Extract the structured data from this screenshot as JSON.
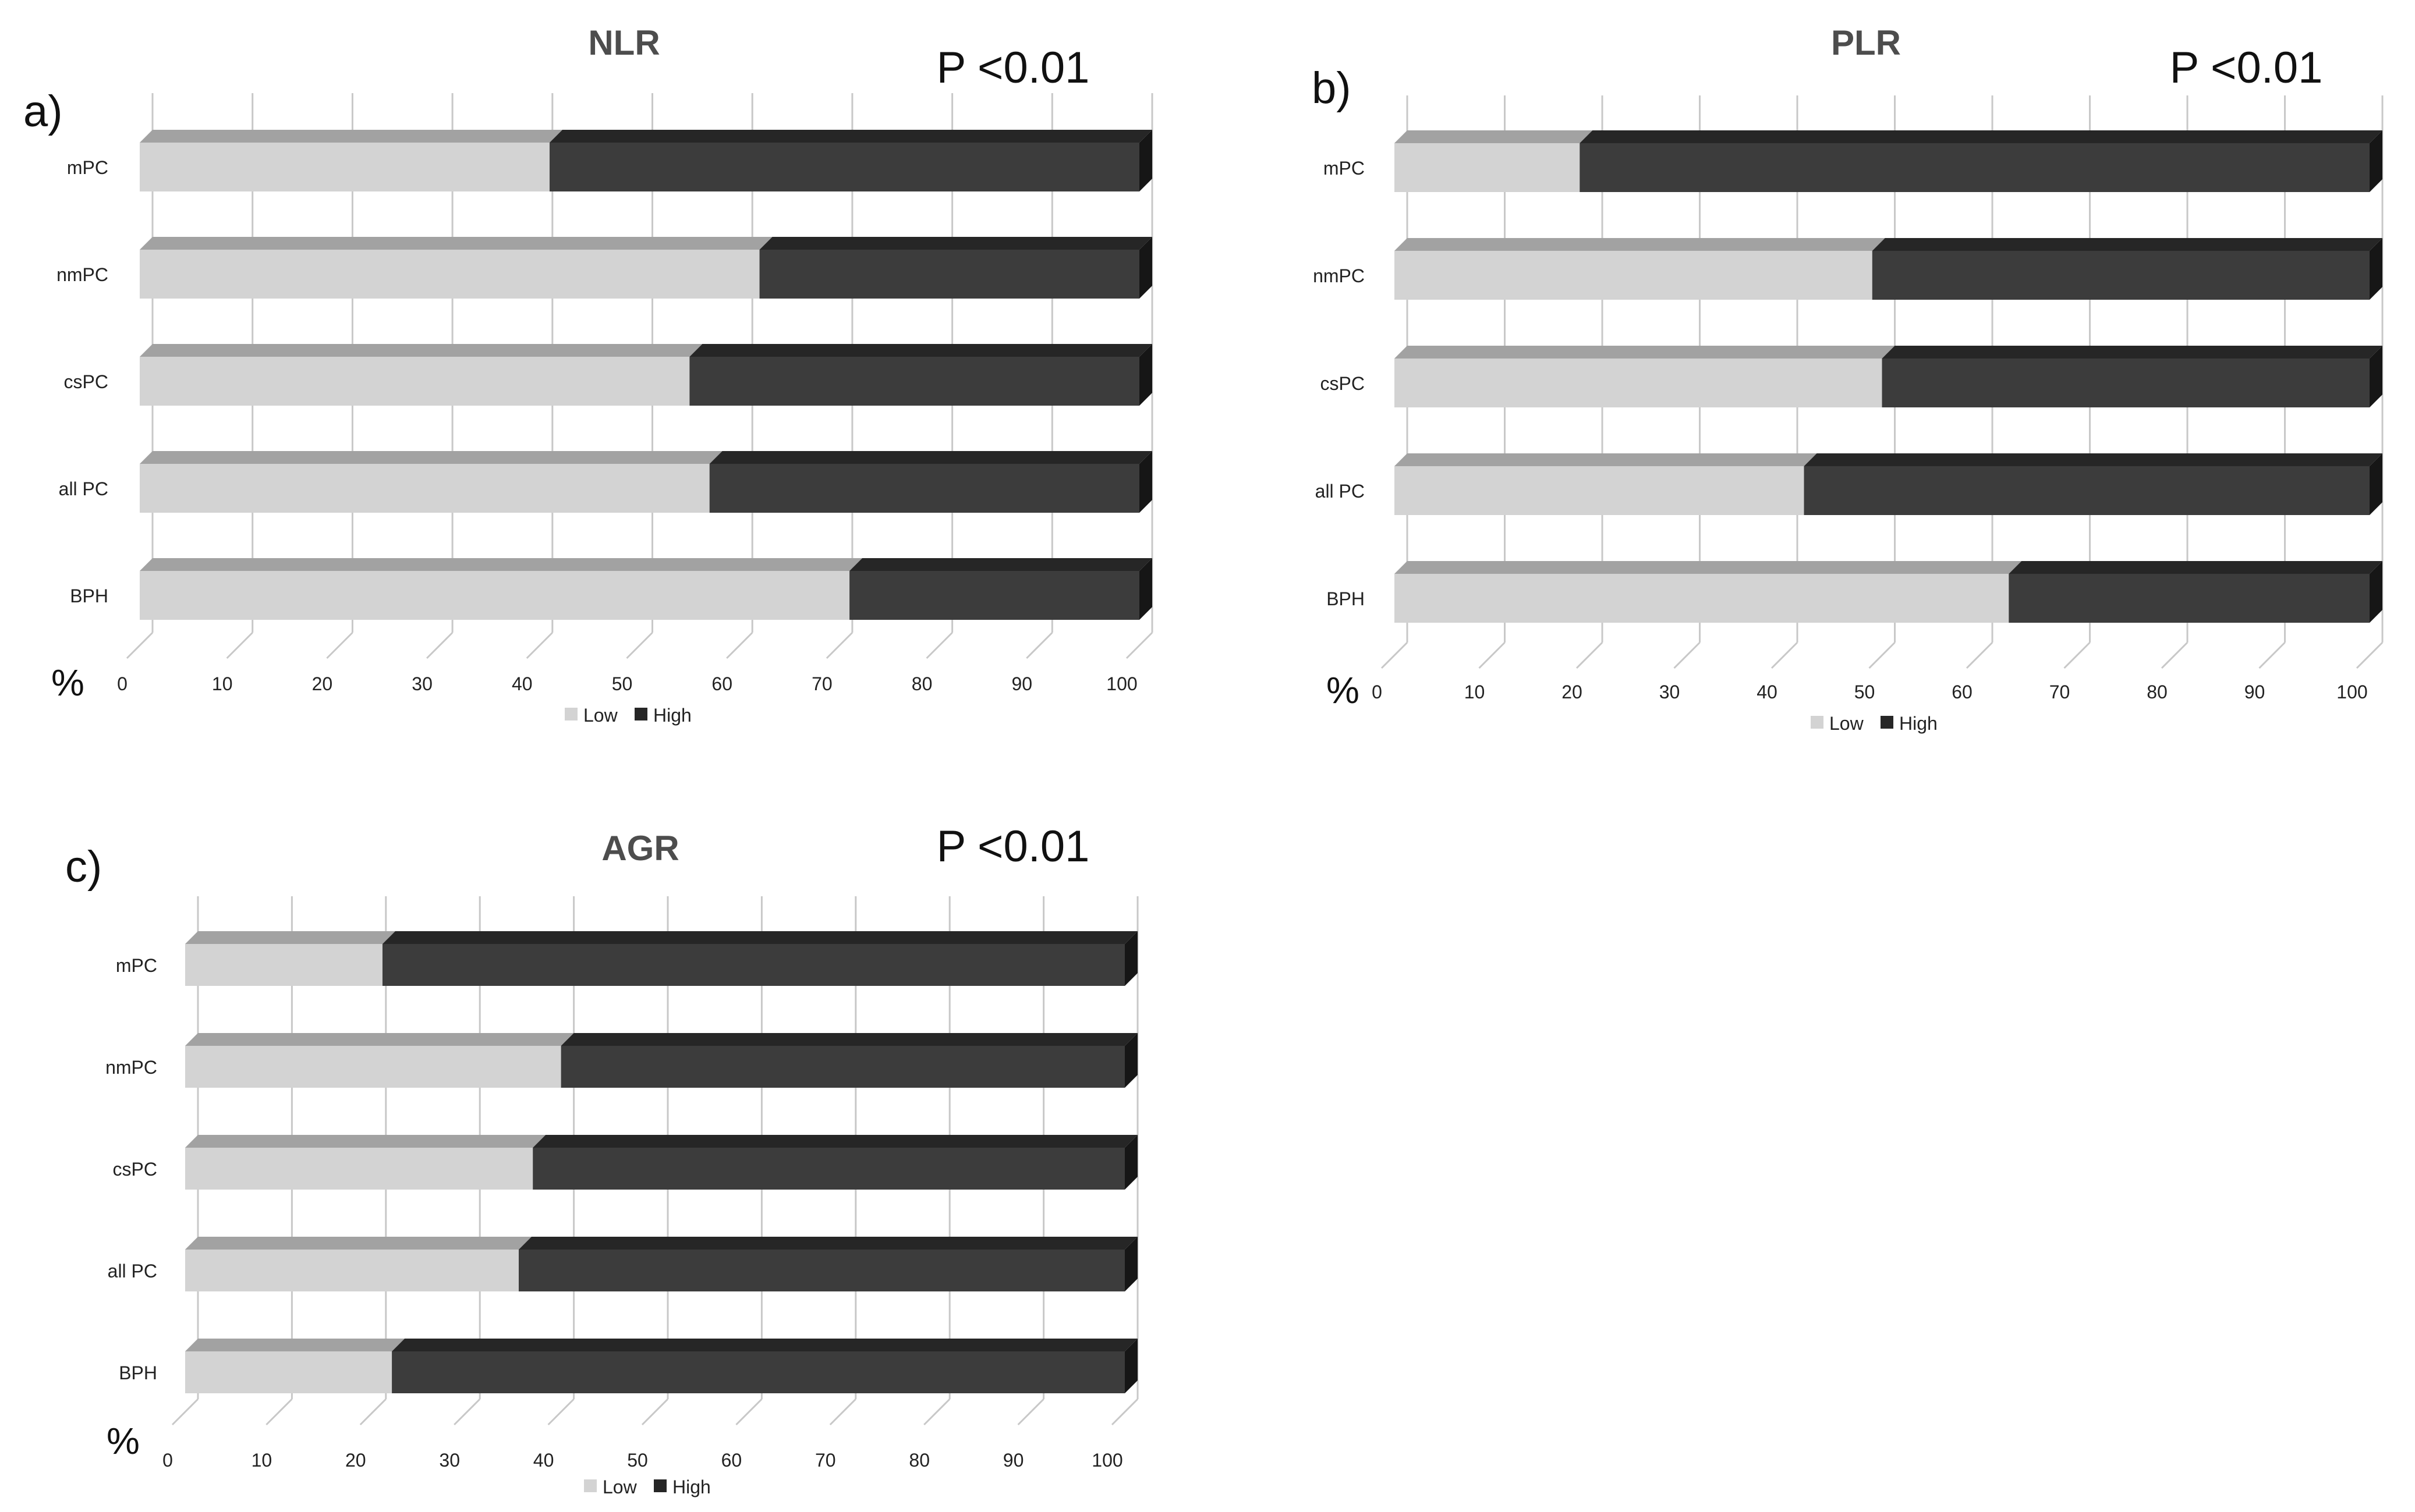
{
  "figure": {
    "legend": {
      "low_label": "Low",
      "high_label": "High"
    },
    "colors": {
      "low": "#d3d3d3",
      "low_top": "#a2a2a2",
      "high": "#3c3c3c",
      "high_top": "#262626",
      "grid": "#c8c8c8",
      "title": "#4d4d4d",
      "text": "#222222"
    }
  },
  "chart_data": [
    {
      "panel_label": "a)",
      "title": "NLR",
      "annotation": "P <0.01",
      "type": "bar",
      "orientation": "horizontal",
      "stacked": true,
      "three_d": true,
      "xlabel": "%",
      "xlim": [
        0,
        100
      ],
      "xticks": [
        "0",
        "10",
        "20",
        "30",
        "40",
        "50",
        "60",
        "70",
        "80",
        "90",
        "100"
      ],
      "categories": [
        "mPC",
        "nmPC",
        "csPC",
        "all PC",
        "BPH"
      ],
      "series": [
        {
          "name": "Low",
          "values": [
            41,
            62,
            55,
            57,
            71
          ]
        },
        {
          "name": "High",
          "values": [
            59,
            38,
            45,
            43,
            29
          ]
        }
      ],
      "legend": "bottom"
    },
    {
      "panel_label": "b)",
      "title": "PLR",
      "annotation": "P <0.01",
      "type": "bar",
      "orientation": "horizontal",
      "stacked": true,
      "three_d": true,
      "xlabel": "%",
      "xlim": [
        0,
        100
      ],
      "xticks": [
        "0",
        "10",
        "20",
        "30",
        "40",
        "50",
        "60",
        "70",
        "80",
        "90",
        "100"
      ],
      "categories": [
        "mPC",
        "nmPC",
        "csPC",
        "all PC",
        "BPH"
      ],
      "series": [
        {
          "name": "Low",
          "values": [
            19,
            49,
            50,
            42,
            63
          ]
        },
        {
          "name": "High",
          "values": [
            81,
            51,
            50,
            58,
            37
          ]
        }
      ],
      "legend": "bottom"
    },
    {
      "panel_label": "c)",
      "title": "AGR",
      "annotation": "P <0.01",
      "type": "bar",
      "orientation": "horizontal",
      "stacked": true,
      "three_d": true,
      "xlabel": "%",
      "xlim": [
        0,
        100
      ],
      "xticks": [
        "0",
        "10",
        "20",
        "30",
        "40",
        "50",
        "60",
        "70",
        "80",
        "90",
        "100"
      ],
      "categories": [
        "mPC",
        "nmPC",
        "csPC",
        "all PC",
        "BPH"
      ],
      "series": [
        {
          "name": "Low",
          "values": [
            21,
            40,
            37,
            35.5,
            22
          ]
        },
        {
          "name": "High",
          "values": [
            79,
            60,
            63,
            64.5,
            78
          ]
        }
      ],
      "legend": "bottom"
    }
  ]
}
